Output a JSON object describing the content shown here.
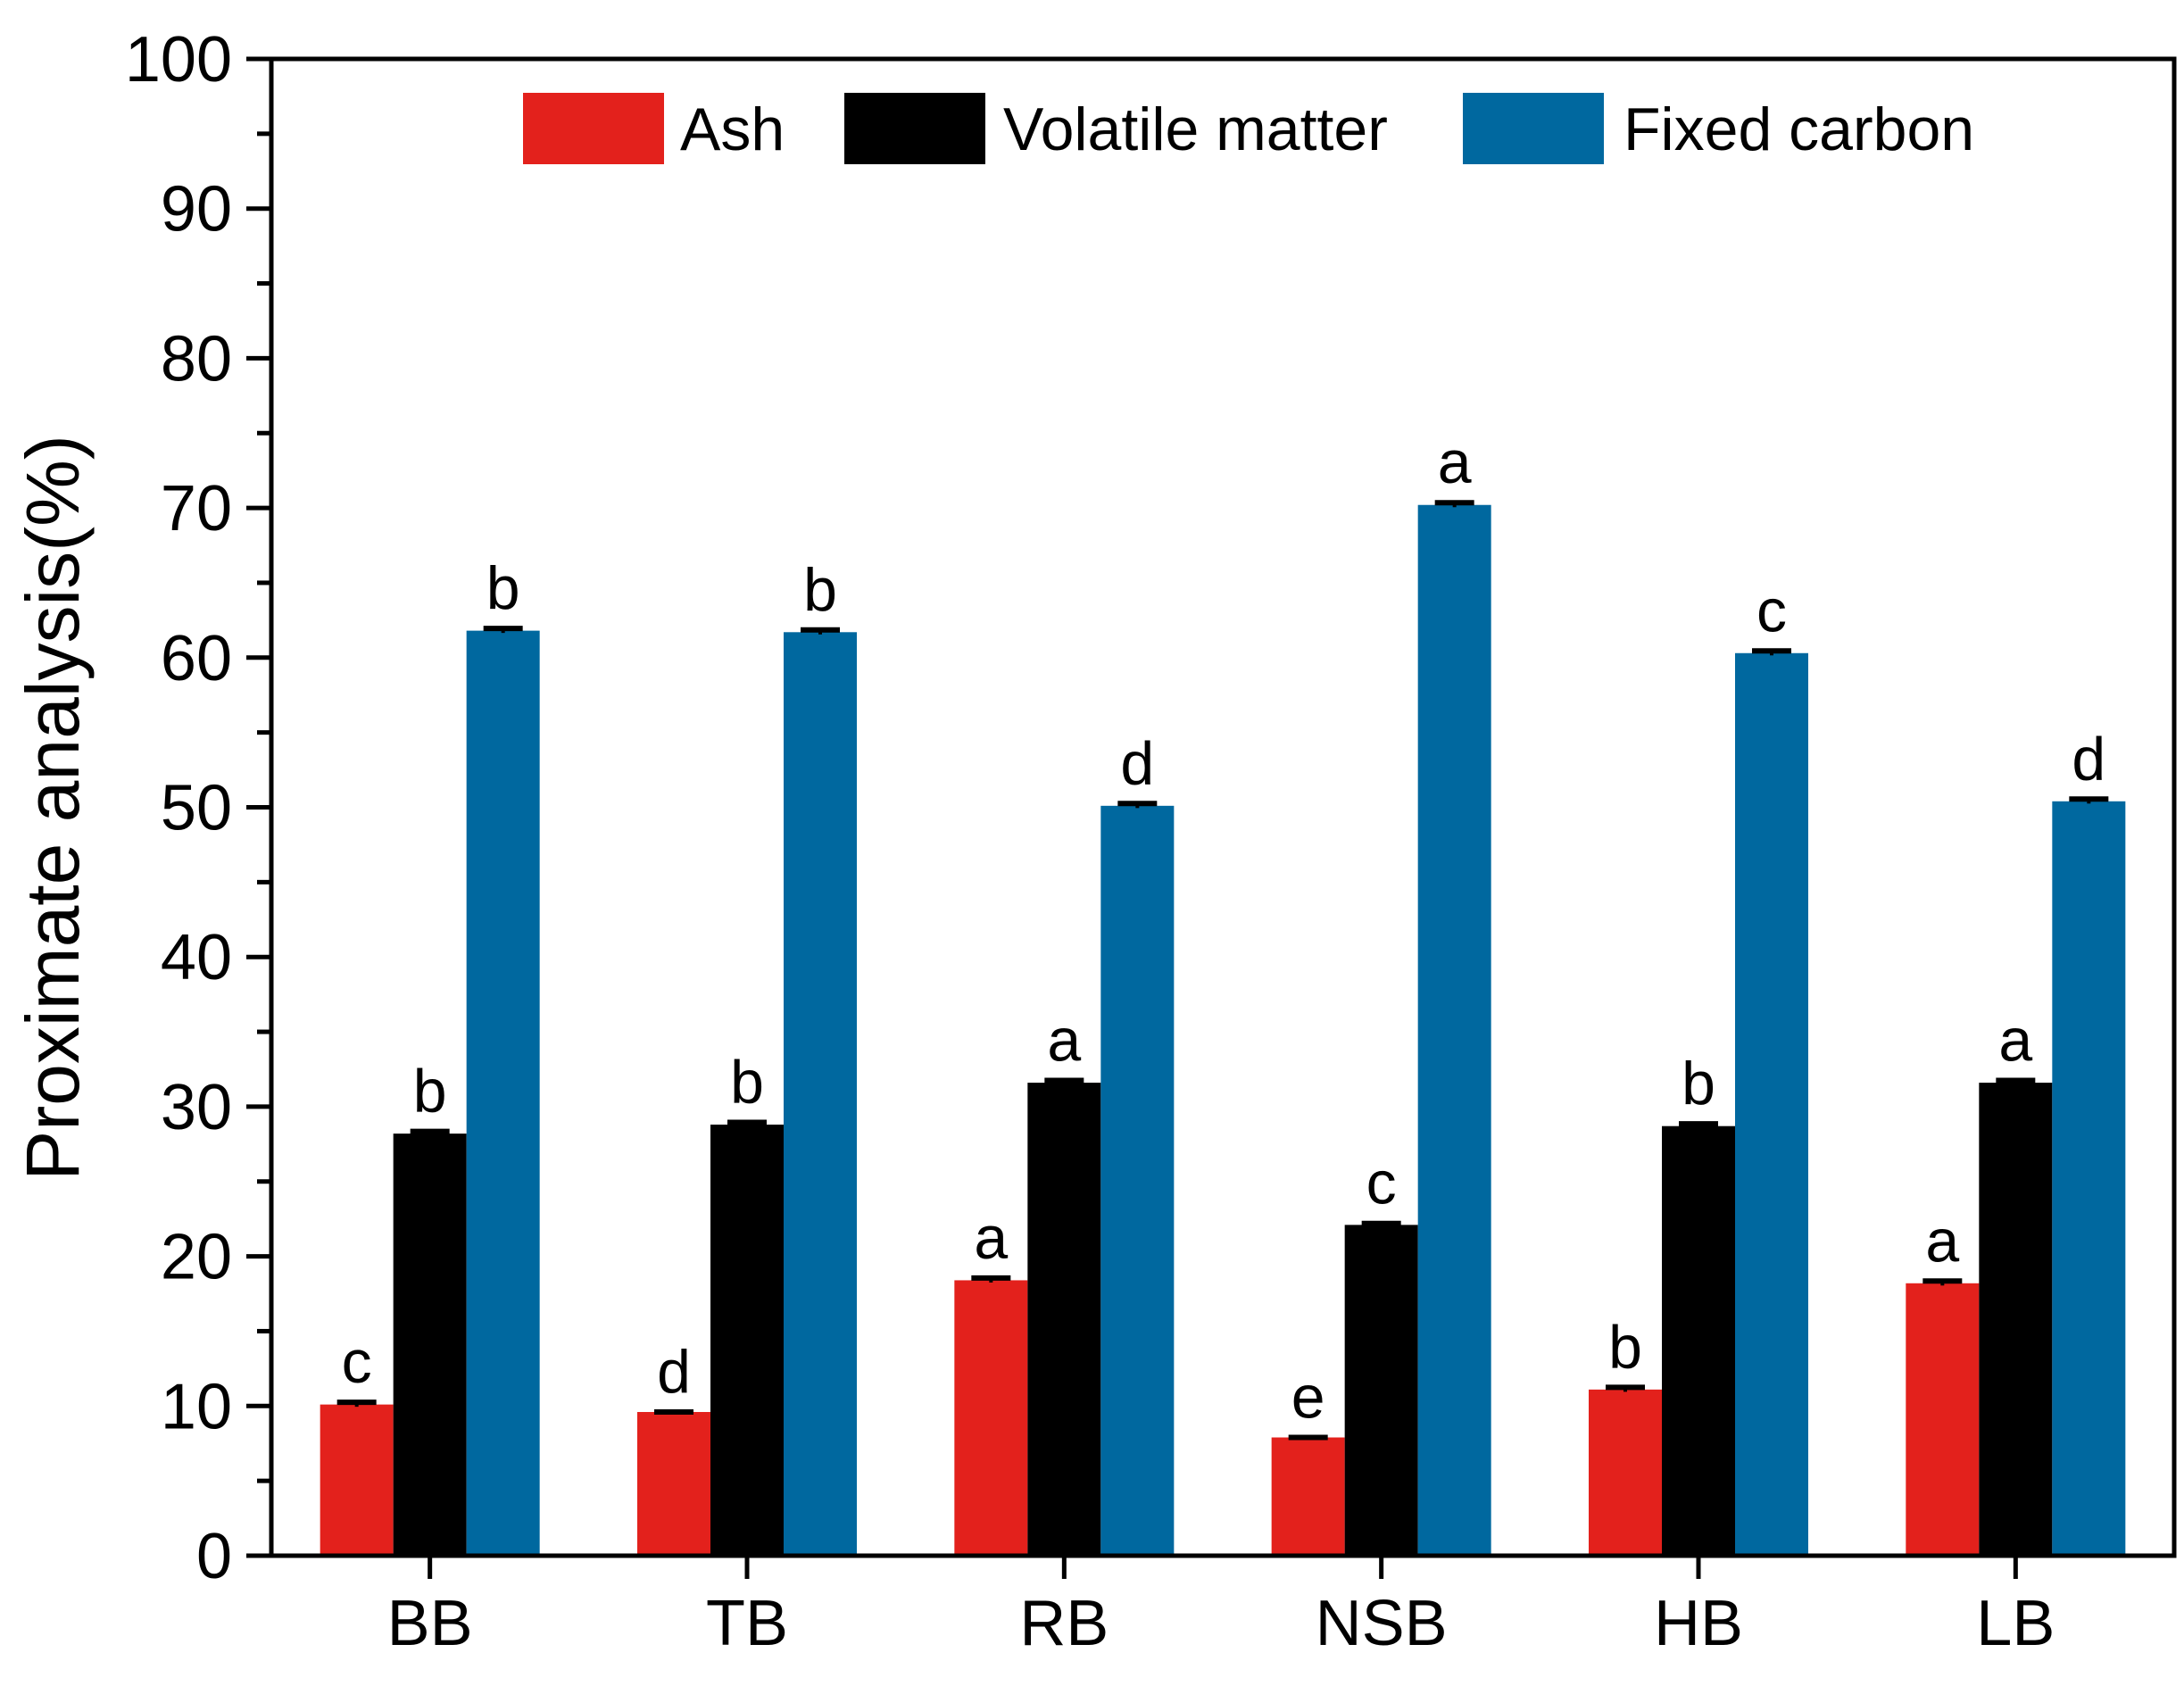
{
  "chart_data": {
    "type": "bar",
    "title": "",
    "xlabel": "",
    "ylabel": "Proximate analysis(%)",
    "ylim": [
      0,
      100
    ],
    "yticks": [
      "0",
      "10",
      "20",
      "30",
      "40",
      "50",
      "60",
      "70",
      "80",
      "90",
      "100"
    ],
    "categories": [
      "BB",
      "TB",
      "RB",
      "NSB",
      "HB",
      "LB"
    ],
    "legend_position": "top",
    "series": [
      {
        "name": "Ash",
        "color": "#e3211c",
        "values": [
          10.1,
          9.6,
          18.4,
          7.9,
          11.1,
          18.2
        ],
        "errors": [
          0.15,
          0.0,
          0.15,
          0.0,
          0.15,
          0.15
        ],
        "significance": [
          "c",
          "d",
          "a",
          "e",
          "b",
          "a"
        ]
      },
      {
        "name": "Volatile matter",
        "color": "#000000",
        "values": [
          28.2,
          28.8,
          31.6,
          22.1,
          28.7,
          31.6
        ],
        "errors": [
          0.15,
          0.15,
          0.15,
          0.1,
          0.15,
          0.15
        ],
        "significance": [
          "b",
          "b",
          "a",
          "c",
          "b",
          "a"
        ]
      },
      {
        "name": "Fixed carbon",
        "color": "#00689f",
        "values": [
          61.8,
          61.7,
          50.1,
          70.2,
          60.3,
          50.4
        ],
        "errors": [
          0.15,
          0.15,
          0.15,
          0.15,
          0.15,
          0.15
        ],
        "significance": [
          "b",
          "b",
          "d",
          "a",
          "c",
          "d"
        ]
      }
    ]
  }
}
